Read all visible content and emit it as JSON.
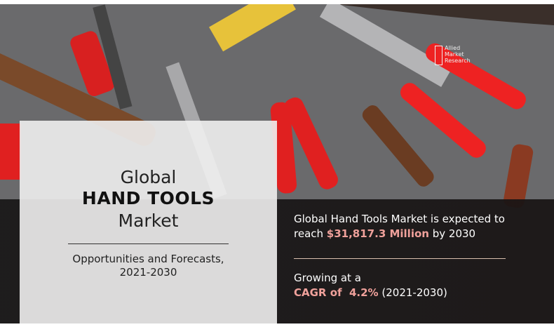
{
  "panel": {
    "line1": "Global",
    "line2": "HAND TOOLS",
    "line3": "Market",
    "subtitle_line1": "Opportunities and Forecasts,",
    "subtitle_line2": "2021-2030"
  },
  "stats": {
    "market_prefix": "Global Hand Tools Market is expected to",
    "reach_prefix": "reach",
    "market_value": "$31,817.3 Million",
    "reach_suffix": "by 2030",
    "growing": "Growing at a",
    "cagr_label": "CAGR of  4.2%",
    "cagr_period": "(2021-2030)"
  },
  "logo": {
    "line1": "Allied",
    "line2": "Market",
    "line3": "Research"
  },
  "colors": {
    "highlight": "#f0a19b",
    "tool_red": "#e0201e",
    "background": "#6d6c6e"
  }
}
